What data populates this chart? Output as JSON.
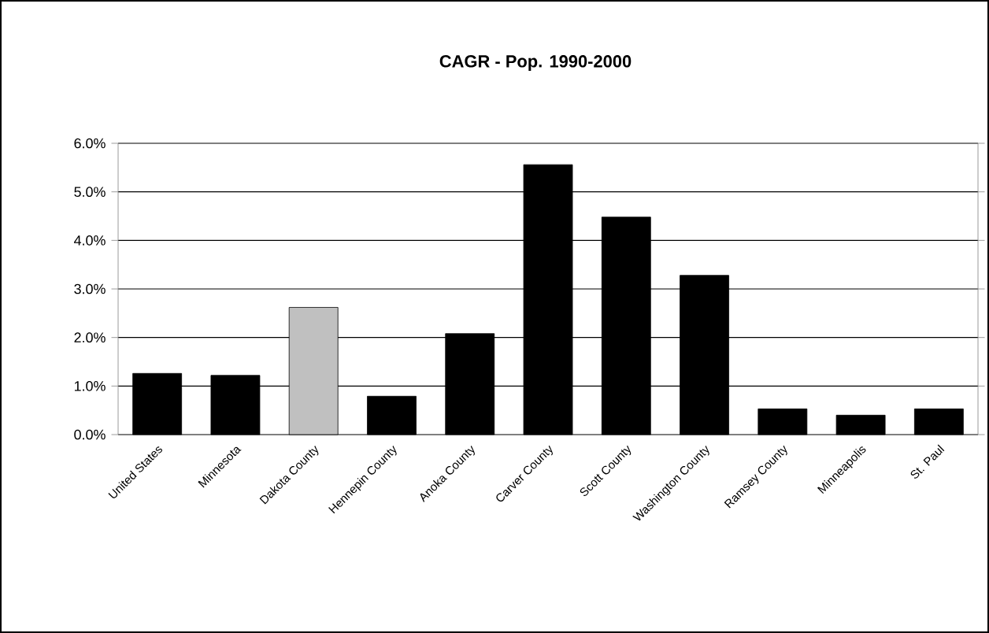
{
  "chart_data": {
    "type": "bar",
    "title": "CAGR - Pop. 1990-2000",
    "categories": [
      "United States",
      "Minnesota",
      "Dakota County",
      "Hennepin County",
      "Anoka County",
      "Carver County",
      "Scott County",
      "Washington County",
      "Ramsey County",
      "Minneapolis",
      "St. Paul"
    ],
    "values": [
      1.26,
      1.22,
      2.62,
      0.79,
      2.08,
      5.56,
      4.48,
      3.28,
      0.53,
      0.4,
      0.53
    ],
    "colors": [
      "#000000",
      "#000000",
      "#c0c0c0",
      "#000000",
      "#000000",
      "#000000",
      "#000000",
      "#000000",
      "#000000",
      "#000000",
      "#000000"
    ],
    "ylim": [
      0,
      6
    ],
    "yticks": [
      {
        "value": 0,
        "label": "0.0%"
      },
      {
        "value": 1,
        "label": "1.0%"
      },
      {
        "value": 2,
        "label": "2.0%"
      },
      {
        "value": 3,
        "label": "3.0%"
      },
      {
        "value": 4,
        "label": "4.0%"
      },
      {
        "value": 5,
        "label": "5.0%"
      },
      {
        "value": 6,
        "label": "6.0%"
      }
    ],
    "grid": "y"
  }
}
